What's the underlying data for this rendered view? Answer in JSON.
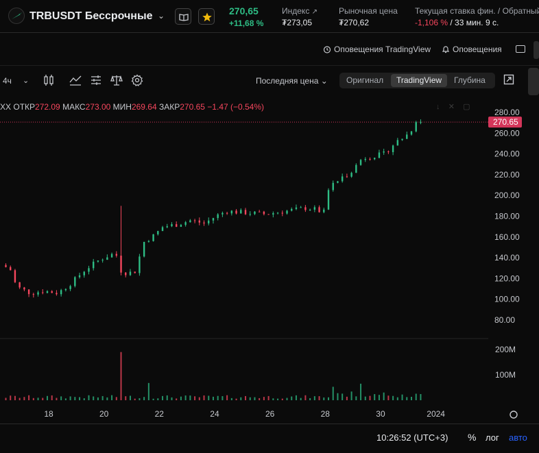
{
  "header": {
    "symbol_title": "TRBUSDT Бессрочные",
    "last_price": "270,65",
    "change_pct": "+11,68 %",
    "stats": {
      "index_label": "Индекс",
      "index_value": "₮273,05",
      "market_label": "Рыночная цена",
      "market_value": "₮270,62",
      "funding_label": "Текущая ставка фин. / Обратный",
      "funding_rate": "-1,106 %",
      "funding_countdown": " / 33 мин. 9 с."
    }
  },
  "toolbar": {
    "alerts_tv": "Оповещения TradingView",
    "alerts": "Оповещения",
    "timeframe": "4ч",
    "price_source": "Последняя цена",
    "views": [
      "Оригинал",
      "TradingView",
      "Глубина"
    ],
    "active_view": "TradingView"
  },
  "legend": {
    "prefix": "XX",
    "open_label": "ОТКР",
    "open": "272.09",
    "high_label": "МАКС",
    "high": "273.00",
    "low_label": "МИН",
    "low": "269.64",
    "close_label": "ЗАКР",
    "close": "270.65",
    "change": "−1.47 (−0.54%)"
  },
  "footer": {
    "time": "10:26:52 (UTC+3)",
    "percent": "%",
    "log": "лог",
    "auto": "авто"
  },
  "colors": {
    "up": "#2ebd85",
    "down": "#f6465d",
    "accent_blue": "#2962ff",
    "price_tag_bg": "#d4365a"
  },
  "chart_data": {
    "type": "candlestick",
    "price_axis_ticks": [
      280,
      260,
      240,
      220,
      200,
      180,
      160,
      140,
      120,
      100,
      80
    ],
    "price_tick_labels": [
      "280.00",
      "260.00",
      "240.00",
      "220.00",
      "200.00",
      "180.00",
      "160.00",
      "140.00",
      "120.00",
      "100.00",
      "80.00"
    ],
    "current_price_tag": "270.65",
    "current_price": 270.65,
    "volume_axis_labels": [
      "200M",
      "100M"
    ],
    "volume_axis_values": [
      200,
      100
    ],
    "time_axis_labels": [
      "18",
      "20",
      "22",
      "24",
      "26",
      "28",
      "30",
      "2024"
    ],
    "close_path": [
      [
        16.5,
        133
      ],
      [
        16.8,
        128
      ],
      [
        17.0,
        112
      ],
      [
        17.5,
        106
      ],
      [
        18.0,
        108
      ],
      [
        18.5,
        106
      ],
      [
        19.0,
        116
      ],
      [
        19.5,
        129
      ],
      [
        20.0,
        138
      ],
      [
        20.4,
        143
      ],
      [
        20.6,
        144
      ],
      [
        20.75,
        128
      ],
      [
        21.0,
        125
      ],
      [
        21.3,
        127
      ],
      [
        21.6,
        155
      ],
      [
        22.0,
        162
      ],
      [
        22.3,
        170
      ],
      [
        22.8,
        172
      ],
      [
        23.3,
        176
      ],
      [
        23.8,
        173
      ],
      [
        24.2,
        180
      ],
      [
        24.6,
        185
      ],
      [
        25.0,
        184
      ],
      [
        25.5,
        183
      ],
      [
        26.0,
        182
      ],
      [
        26.5,
        184
      ],
      [
        27.0,
        186
      ],
      [
        27.5,
        188
      ],
      [
        27.9,
        186
      ],
      [
        28.1,
        182
      ],
      [
        28.3,
        207
      ],
      [
        28.6,
        214
      ],
      [
        28.9,
        219
      ],
      [
        29.2,
        226
      ],
      [
        29.5,
        236
      ],
      [
        29.9,
        238
      ],
      [
        30.3,
        240
      ],
      [
        30.7,
        251
      ],
      [
        31.1,
        258
      ],
      [
        31.4,
        267
      ],
      [
        31.5,
        270.65
      ]
    ],
    "volume_spikes": [
      {
        "x": 20.7,
        "v": 190
      },
      {
        "x": 21.7,
        "v": 68
      },
      {
        "x": 29.3,
        "v": 55
      },
      {
        "x": 28.3,
        "v": 42
      }
    ]
  }
}
